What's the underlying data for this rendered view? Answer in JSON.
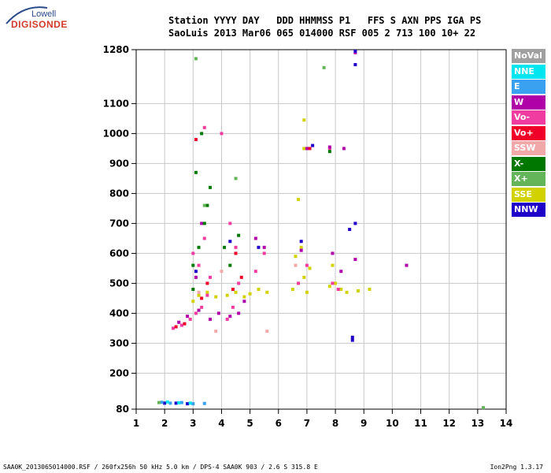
{
  "logo": {
    "line1": "Lowell",
    "line2": "DIGISONDE"
  },
  "header": {
    "line1": "Station YYYY DAY   DDD HHMMSS P1   FFS S AXN PPS IGA PS",
    "line2": "SaoLuis 2013 Mar06 065 014000 RSF 005 2 713 100 10+ 22"
  },
  "footer": {
    "left": "SAA0K_2013065014000.RSF / 260fx256h 50 kHz 5.0 km / DPS-4 SAA0K 903 / 2.6 S 315.8 E",
    "right": "Ion2Png 1.3.17"
  },
  "legend": [
    {
      "label": "NoVal",
      "color": "#a0a0a0"
    },
    {
      "label": "NNE",
      "color": "#00e6f0"
    },
    {
      "label": "E",
      "color": "#3aa0f0"
    },
    {
      "label": "W",
      "color": "#b000a8"
    },
    {
      "label": "Vo-",
      "color": "#f03ca0"
    },
    {
      "label": "Vo+",
      "color": "#f00028"
    },
    {
      "label": "SSW",
      "color": "#f0a8a8"
    },
    {
      "label": "X-",
      "color": "#007800"
    },
    {
      "label": "X+",
      "color": "#64b45a"
    },
    {
      "label": "SSE",
      "color": "#d2d200"
    },
    {
      "label": "NNW",
      "color": "#1e00c8"
    }
  ],
  "chart_data": {
    "type": "scatter",
    "xlabel": "",
    "ylabel": "",
    "xlim": [
      1,
      14
    ],
    "ylim": [
      80,
      1280
    ],
    "x_ticks": [
      1,
      2,
      3,
      4,
      5,
      6,
      7,
      8,
      9,
      10,
      11,
      12,
      13,
      14
    ],
    "y_ticks": [
      80,
      200,
      300,
      400,
      500,
      600,
      700,
      800,
      900,
      1000,
      1100,
      1280
    ],
    "grid": true,
    "clusters": [
      {
        "name": "SSE",
        "color": "#d2d200",
        "points": [
          [
            3.0,
            440
          ],
          [
            3.2,
            460
          ],
          [
            3.5,
            470
          ],
          [
            3.8,
            455
          ],
          [
            4.2,
            460
          ],
          [
            4.5,
            470
          ],
          [
            4.8,
            455
          ],
          [
            5.0,
            465
          ],
          [
            5.3,
            480
          ],
          [
            5.6,
            470
          ],
          [
            6.5,
            480
          ],
          [
            6.7,
            500
          ],
          [
            6.9,
            520
          ],
          [
            7.0,
            470
          ],
          [
            7.1,
            550
          ],
          [
            6.6,
            590
          ],
          [
            6.8,
            620
          ],
          [
            7.8,
            490
          ],
          [
            8.0,
            500
          ],
          [
            8.2,
            480
          ],
          [
            8.4,
            470
          ],
          [
            8.8,
            475
          ],
          [
            9.2,
            480
          ],
          [
            7.9,
            560
          ],
          [
            6.7,
            780
          ],
          [
            6.9,
            950
          ],
          [
            6.9,
            1045
          ]
        ]
      },
      {
        "name": "Vo-",
        "color": "#f03ca0",
        "points": [
          [
            2.3,
            350
          ],
          [
            2.6,
            360
          ],
          [
            2.9,
            380
          ],
          [
            3.1,
            400
          ],
          [
            3.3,
            420
          ],
          [
            3.5,
            460
          ],
          [
            3.6,
            520
          ],
          [
            3.2,
            560
          ],
          [
            3.0,
            600
          ],
          [
            3.4,
            650
          ],
          [
            4.2,
            380
          ],
          [
            4.4,
            420
          ],
          [
            4.6,
            500
          ],
          [
            4.5,
            620
          ],
          [
            4.3,
            700
          ],
          [
            5.2,
            540
          ],
          [
            5.5,
            600
          ],
          [
            6.7,
            500
          ],
          [
            7.0,
            560
          ],
          [
            7.9,
            500
          ],
          [
            8.1,
            480
          ],
          [
            4.0,
            1000
          ],
          [
            3.4,
            1020
          ],
          [
            7.8,
            950
          ]
        ]
      },
      {
        "name": "W",
        "color": "#b000a8",
        "points": [
          [
            2.5,
            370
          ],
          [
            2.8,
            390
          ],
          [
            3.2,
            410
          ],
          [
            3.6,
            380
          ],
          [
            3.9,
            400
          ],
          [
            4.3,
            390
          ],
          [
            4.6,
            400
          ],
          [
            4.8,
            440
          ],
          [
            3.1,
            520
          ],
          [
            3.3,
            700
          ],
          [
            5.2,
            650
          ],
          [
            5.5,
            620
          ],
          [
            6.8,
            610
          ],
          [
            7.9,
            600
          ],
          [
            8.2,
            540
          ],
          [
            10.5,
            560
          ],
          [
            7.0,
            950
          ],
          [
            7.8,
            955
          ],
          [
            8.3,
            950
          ],
          [
            8.7,
            1270
          ],
          [
            8.7,
            580
          ]
        ]
      },
      {
        "name": "X-",
        "color": "#007800",
        "points": [
          [
            3.0,
            560
          ],
          [
            3.2,
            620
          ],
          [
            3.4,
            700
          ],
          [
            3.6,
            820
          ],
          [
            3.1,
            870
          ],
          [
            3.5,
            760
          ],
          [
            4.3,
            560
          ],
          [
            4.6,
            660
          ],
          [
            4.1,
            620
          ],
          [
            3.0,
            480
          ],
          [
            3.3,
            1000
          ],
          [
            7.8,
            940
          ]
        ]
      },
      {
        "name": "Vo+",
        "color": "#f00028",
        "points": [
          [
            2.4,
            355
          ],
          [
            2.7,
            365
          ],
          [
            3.3,
            450
          ],
          [
            3.5,
            500
          ],
          [
            4.4,
            480
          ],
          [
            4.7,
            520
          ],
          [
            4.5,
            600
          ],
          [
            7.1,
            950
          ],
          [
            3.1,
            980
          ]
        ]
      },
      {
        "name": "NNW",
        "color": "#1e00c8",
        "points": [
          [
            2.0,
            100
          ],
          [
            2.4,
            100
          ],
          [
            2.8,
            98
          ],
          [
            3.1,
            540
          ],
          [
            4.3,
            640
          ],
          [
            5.3,
            620
          ],
          [
            6.8,
            640
          ],
          [
            7.2,
            960
          ],
          [
            8.7,
            700
          ],
          [
            8.6,
            320
          ],
          [
            8.6,
            310
          ],
          [
            8.7,
            1230
          ],
          [
            8.7,
            1275
          ],
          [
            8.5,
            680
          ]
        ]
      },
      {
        "name": "E",
        "color": "#3aa0f0",
        "points": [
          [
            1.9,
            103
          ],
          [
            2.2,
            100
          ],
          [
            2.6,
            102
          ],
          [
            3.0,
            98
          ],
          [
            3.4,
            99
          ]
        ]
      },
      {
        "name": "NNE",
        "color": "#00e6f0",
        "points": [
          [
            2.1,
            104
          ],
          [
            2.5,
            101
          ],
          [
            2.9,
            100
          ]
        ]
      },
      {
        "name": "X+",
        "color": "#64b45a",
        "points": [
          [
            1.8,
            102
          ],
          [
            3.1,
            1250
          ],
          [
            7.6,
            1220
          ],
          [
            3.4,
            760
          ],
          [
            13.2,
            85
          ],
          [
            4.5,
            850
          ]
        ]
      },
      {
        "name": "SSW",
        "color": "#f0a8a8",
        "points": [
          [
            3.2,
            470
          ],
          [
            4.0,
            540
          ],
          [
            6.6,
            560
          ],
          [
            5.6,
            340
          ],
          [
            3.8,
            340
          ]
        ]
      }
    ]
  }
}
